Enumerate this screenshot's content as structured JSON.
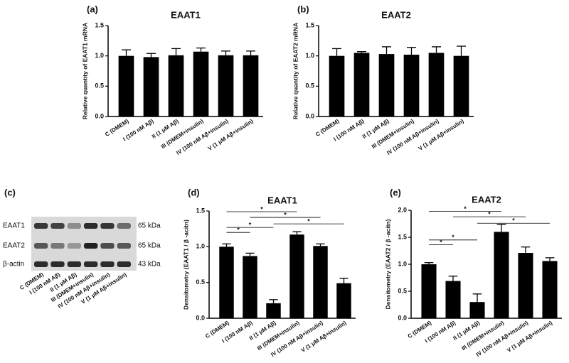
{
  "chart_data": [
    {
      "type": "bar",
      "panel": "(a)",
      "title": "EAAT1",
      "y_label": "Relative quantity of EAAT1 mRNA",
      "categories": [
        "C (DMEM)",
        "I (100 nM Aβ)",
        "II (1 μM Aβ)",
        "III (DMEM+insulin)",
        "IV (100 nM Aβ+insulin)",
        "V (1 μM Aβ+insulin)"
      ],
      "values": [
        1.0,
        0.98,
        1.01,
        1.07,
        1.01,
        1.01
      ],
      "errors": [
        0.1,
        0.06,
        0.11,
        0.06,
        0.07,
        0.07
      ],
      "color": "#000000",
      "ylim": [
        0,
        1.5
      ],
      "yticks": [
        {
          "value": 0,
          "label": "0.0"
        },
        0.5,
        {
          "value": 1,
          "label": "1.0"
        },
        1.5
      ]
    },
    {
      "type": "bar",
      "panel": "(b)",
      "title": "EAAT2",
      "y_label": "Relative quantity of EAAT2 mRNA",
      "categories": [
        "C (DMEM)",
        "I (100 nM Aβ)",
        "II (1 μM Aβ)",
        "III (DMEM+insulin)",
        "IV (100 nM Aβ+insulin)",
        "V (1 μM Aβ+insulin)"
      ],
      "values": [
        1.0,
        1.05,
        1.03,
        1.02,
        1.05,
        1.0
      ],
      "errors": [
        0.12,
        0.02,
        0.12,
        0.12,
        0.1,
        0.16
      ],
      "color": "#000000",
      "ylim": [
        0,
        1.5
      ],
      "yticks": [
        {
          "value": 0,
          "label": "0.0"
        },
        0.5,
        {
          "value": 1,
          "label": "1.0"
        },
        1.5
      ]
    },
    {
      "type": "blot",
      "panel": "(c)",
      "categories": [
        "C (DMEM)",
        "I (100 nM Aβ)",
        "II (1 μM Aβ)",
        "III (DMEM+insulin)",
        "IV (100 nM Aβ+insulin)",
        "V (1 μM Aβ+insulin)"
      ],
      "bands": [
        {
          "name": "EAAT1",
          "size": "65 kDa"
        },
        {
          "name": "EAAT2",
          "size": "65 kDa"
        },
        {
          "name": "β-actin",
          "size": "43 kDa"
        }
      ]
    },
    {
      "type": "bar",
      "panel": "(d)",
      "title": "EAAT1",
      "y_label": "Densitometry (EAAT1 / β -acitn)",
      "categories": [
        "C (DMEM)",
        "I (100 nM Aβ)",
        "II (1 μM Aβ)",
        "III (DMEM+insulin)",
        "IV (100 nM Aβ+insulin)",
        "V (1 μM Aβ+insulin)"
      ],
      "values": [
        1.0,
        0.87,
        0.21,
        1.17,
        1.01,
        0.49
      ],
      "errors": [
        0.04,
        0.04,
        0.05,
        0.04,
        0.03,
        0.07
      ],
      "color": "#000000",
      "ylim": [
        0,
        1.5
      ],
      "yticks": [
        {
          "value": 0,
          "label": "0.0"
        },
        0.5,
        {
          "value": 1,
          "label": "1.0"
        },
        1.5
      ],
      "annotations": [
        {
          "from": 0,
          "to": 3,
          "y": 1.49,
          "label": "*"
        },
        {
          "from": 1,
          "to": 4,
          "y": 1.41,
          "label": "*"
        },
        {
          "from": 2,
          "to": 5,
          "y": 1.32,
          "label": "*"
        },
        {
          "from": 0,
          "to": 2,
          "y": 1.27,
          "label": "*"
        },
        {
          "from": 0,
          "to": 1,
          "y": 1.2,
          "label": "*"
        }
      ]
    },
    {
      "type": "bar",
      "panel": "(e)",
      "title": "EAAT2",
      "y_label": "Densitometry (EAAT2 / β -acitn)",
      "categories": [
        "C (DMEM)",
        "I (100 nM Aβ)",
        "II (1 μM Aβ)",
        "III (DMEM+insulin)",
        "IV (100 nM Aβ+insulin)",
        "V (1 μM Aβ+insulin)"
      ],
      "values": [
        1.0,
        0.69,
        0.3,
        1.6,
        1.21,
        1.06
      ],
      "errors": [
        0.03,
        0.09,
        0.15,
        0.14,
        0.11,
        0.06
      ],
      "color": "#000000",
      "ylim": [
        0,
        2
      ],
      "yticks": [
        {
          "value": 0,
          "label": "0.0"
        },
        0.5,
        {
          "value": 1,
          "label": "1.0"
        },
        1.5,
        {
          "value": 2,
          "label": "2.0"
        }
      ],
      "annotations": [
        {
          "from": 0,
          "to": 3,
          "y": 1.98,
          "label": "*"
        },
        {
          "from": 1,
          "to": 4,
          "y": 1.88,
          "label": "*"
        },
        {
          "from": 2,
          "to": 5,
          "y": 1.76,
          "label": "*"
        },
        {
          "from": 0,
          "to": 2,
          "y": 1.45,
          "label": "*"
        },
        {
          "from": 0,
          "to": 1,
          "y": 1.36,
          "label": "*"
        }
      ]
    }
  ]
}
